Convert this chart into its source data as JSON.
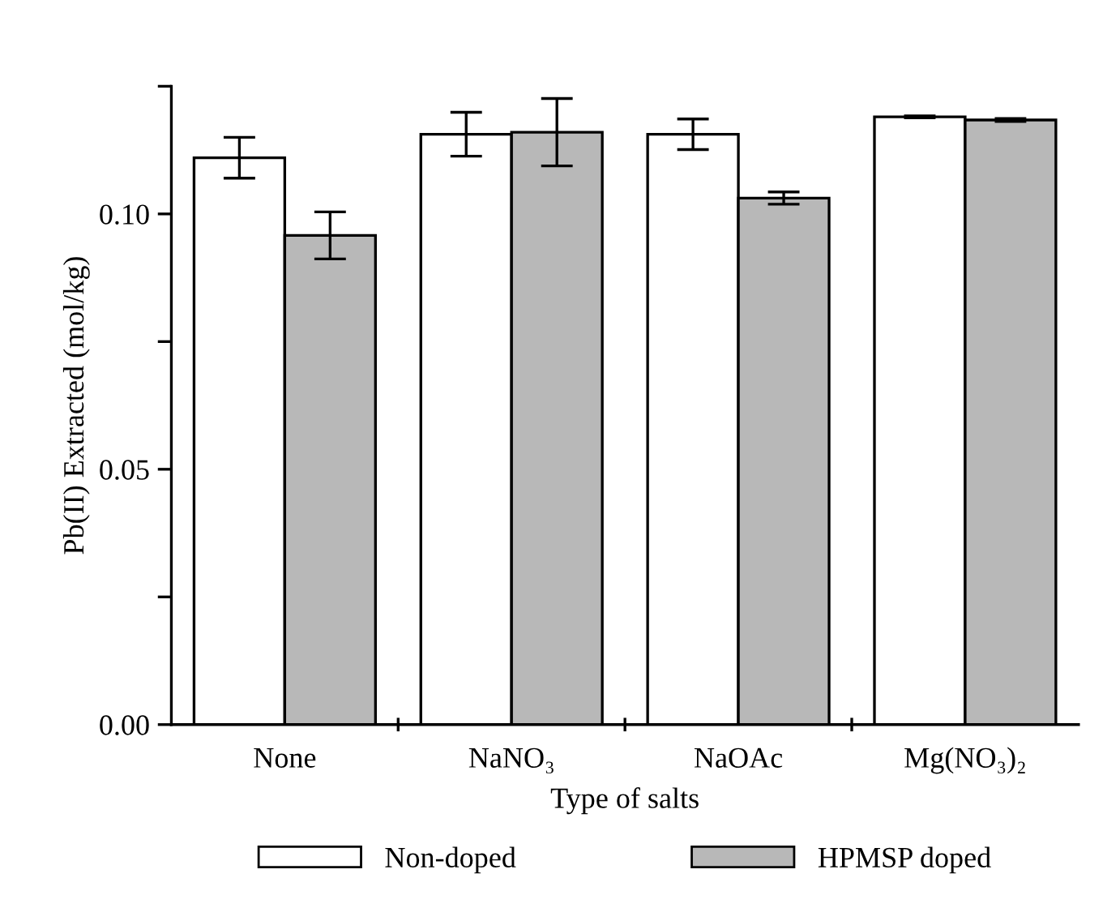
{
  "chart_data": {
    "type": "bar",
    "xlabel": "Type of salts",
    "ylabel": "Pb(II) Extracted (mol/kg)",
    "categories": [
      "None",
      "NaNO₃",
      "NaOAc",
      "Mg(NO₃)₂"
    ],
    "series": [
      {
        "name": "Non-doped",
        "color": "#ffffff",
        "values": [
          0.111,
          0.1156,
          0.1156,
          0.119
        ],
        "errors": [
          0.004,
          0.0043,
          0.003,
          0.0002
        ]
      },
      {
        "name": "HPMSP doped",
        "color": "#b8b8b8",
        "values": [
          0.0958,
          0.116,
          0.1031,
          0.1184
        ],
        "errors": [
          0.0046,
          0.0066,
          0.0012,
          0.0003
        ]
      }
    ],
    "ylim": [
      0,
      0.125
    ],
    "yticks": [
      {
        "value": 0,
        "label": "0.00"
      },
      {
        "value": 0.025,
        "label": null
      },
      {
        "value": 0.05,
        "label": "0.05"
      },
      {
        "value": 0.075,
        "label": null
      },
      {
        "value": 0.1,
        "label": "0.10"
      },
      {
        "value": 0.125,
        "label": null
      }
    ],
    "grid": false,
    "legend": "bottom"
  }
}
